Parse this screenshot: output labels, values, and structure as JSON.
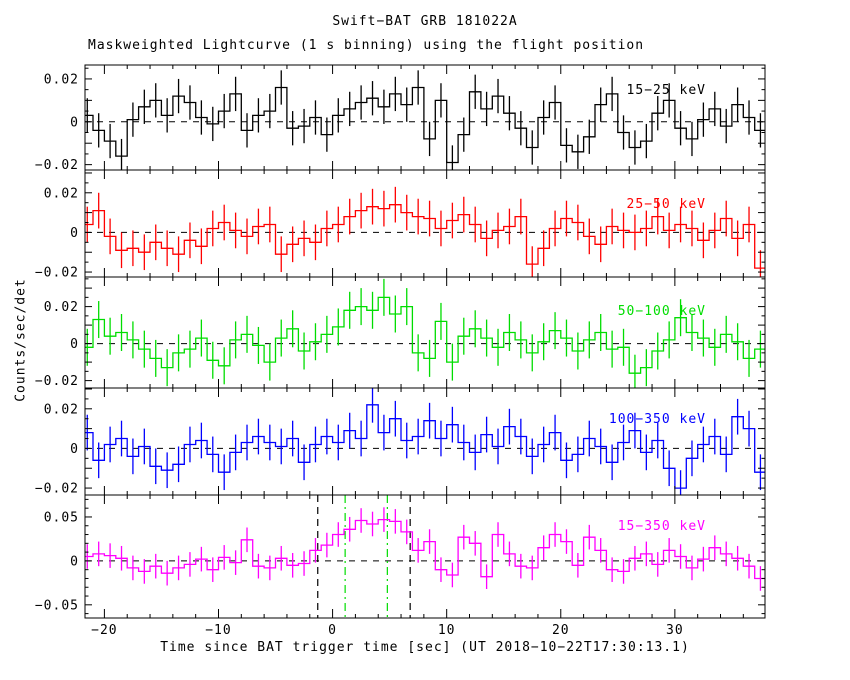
{
  "title": "Swift−BAT GRB 181022A",
  "subtitle": "Maskweighted Lightcurve (1 s binning) using the flight position",
  "xlabel": "Time since BAT trigger time [sec] (UT 2018−10−22T17:30:13.1)",
  "ylabel": "Counts/sec/det",
  "chart_data": {
    "type": "line",
    "style": "step-histogram with symmetric error bars, 1 s bins",
    "x_start": -22,
    "bin_width": 1,
    "xlim": [
      -21.7,
      37.9
    ],
    "x_ticks": [
      {
        "v": -20,
        "label": "−20"
      },
      {
        "v": -10,
        "label": "−10"
      },
      {
        "v": 0,
        "label": "0"
      },
      {
        "v": 10,
        "label": "10"
      },
      {
        "v": 20,
        "label": "20"
      },
      {
        "v": 30,
        "label": "30"
      }
    ],
    "x_minor_step": 2,
    "value_scale": 0.001,
    "grid": "off",
    "zero_line_style": "black dashed",
    "panels": [
      {
        "label": "15−25 keV",
        "color": "#000000",
        "ylim": [
          -0.0225,
          0.0265
        ],
        "y_ticks": [
          {
            "v": 0.02,
            "label": "0.02"
          },
          {
            "v": 0,
            "label": "0"
          },
          {
            "v": -0.02,
            "label": "−0.02"
          }
        ],
        "y_minor_step": 0.005,
        "y_major_step": 0.01,
        "err": 8,
        "values": [
          3,
          -4,
          -9,
          -16,
          1,
          7,
          10,
          3,
          12,
          9,
          2,
          -1,
          5,
          13,
          -4,
          3,
          5,
          16,
          -3,
          -2,
          2,
          -6,
          3,
          6,
          9,
          11,
          7,
          13,
          8,
          16,
          -8,
          10,
          -19,
          -6,
          14,
          6,
          12,
          4,
          -3,
          -12,
          2,
          9,
          -11,
          -14,
          -7,
          8,
          13,
          -5,
          -12,
          -9,
          4,
          10,
          -3,
          -8,
          1,
          6,
          -2,
          8,
          2,
          -4
        ]
      },
      {
        "label": "25−50 keV",
        "color": "#ff0000",
        "ylim": [
          -0.0225,
          0.0315
        ],
        "y_ticks": [
          {
            "v": 0.02,
            "label": "0.02"
          },
          {
            "v": 0,
            "label": "0"
          },
          {
            "v": -0.02,
            "label": "−0.02"
          }
        ],
        "y_minor_step": 0.005,
        "y_major_step": 0.01,
        "err": 9,
        "values": [
          4,
          11,
          -2,
          -9,
          -8,
          -10,
          -5,
          -8,
          -11,
          -4,
          -7,
          2,
          5,
          1,
          -2,
          3,
          4,
          -11,
          -6,
          -3,
          -5,
          2,
          4,
          8,
          11,
          13,
          12,
          14,
          10,
          8,
          7,
          2,
          6,
          9,
          4,
          -3,
          1,
          3,
          8,
          -16,
          -8,
          2,
          7,
          5,
          -2,
          -6,
          3,
          1,
          0,
          2,
          8,
          1,
          4,
          2,
          -4,
          1,
          7,
          -3,
          4,
          -18
        ]
      },
      {
        "label": "50−100 keV",
        "color": "#00dd00",
        "ylim": [
          -0.024,
          0.036
        ],
        "y_ticks": [
          {
            "v": 0.02,
            "label": "0.02"
          },
          {
            "v": 0,
            "label": "0"
          },
          {
            "v": -0.02,
            "label": "−0.02"
          }
        ],
        "y_minor_step": 0.005,
        "y_major_step": 0.01,
        "err": 10,
        "values": [
          -2,
          13,
          4,
          6,
          2,
          -3,
          -8,
          -13,
          -5,
          -3,
          3,
          -9,
          -12,
          2,
          5,
          -1,
          -10,
          3,
          8,
          -4,
          1,
          5,
          9,
          18,
          20,
          18,
          25,
          16,
          20,
          -5,
          -8,
          12,
          -10,
          4,
          8,
          3,
          -2,
          6,
          2,
          -5,
          1,
          7,
          3,
          -4,
          2,
          6,
          -3,
          -2,
          -16,
          -13,
          -4,
          2,
          14,
          6,
          3,
          -2,
          5,
          1,
          -8,
          -3
        ]
      },
      {
        "label": "100−350 keV",
        "color": "#0000ff",
        "ylim": [
          -0.0235,
          0.0305
        ],
        "y_ticks": [
          {
            "v": 0.02,
            "label": "0.02"
          },
          {
            "v": 0,
            "label": "0"
          },
          {
            "v": -0.02,
            "label": "−0.02"
          }
        ],
        "y_minor_step": 0.005,
        "y_major_step": 0.01,
        "err": 9,
        "values": [
          8,
          -6,
          2,
          5,
          -4,
          1,
          -9,
          -11,
          -8,
          2,
          4,
          -3,
          -12,
          -2,
          3,
          6,
          3,
          1,
          5,
          -7,
          2,
          6,
          3,
          9,
          5,
          22,
          8,
          15,
          4,
          6,
          14,
          5,
          12,
          3,
          -2,
          7,
          1,
          11,
          6,
          -4,
          2,
          8,
          -6,
          -3,
          5,
          1,
          -7,
          3,
          9,
          -2,
          4,
          -10,
          -20,
          -5,
          2,
          6,
          -3,
          16,
          10,
          -12
        ]
      },
      {
        "label": "15−350 keV",
        "color": "#ff00ff",
        "ylim": [
          -0.065,
          0.075
        ],
        "y_ticks": [
          {
            "v": 0.05,
            "label": "0.05"
          },
          {
            "v": 0,
            "label": "0"
          },
          {
            "v": -0.05,
            "label": "−0.05"
          }
        ],
        "y_minor_step": 0.01,
        "y_major_step": 0.05,
        "err": 14,
        "values": [
          5,
          8,
          6,
          3,
          -8,
          -12,
          -6,
          -14,
          -8,
          -4,
          2,
          -10,
          4,
          -2,
          24,
          -6,
          -8,
          3,
          -5,
          -3,
          12,
          18,
          30,
          36,
          46,
          42,
          47,
          45,
          33,
          12,
          22,
          -10,
          -16,
          27,
          20,
          -18,
          30,
          8,
          -6,
          -8,
          15,
          30,
          22,
          -5,
          27,
          12,
          -10,
          -12,
          3,
          8,
          -4,
          12,
          5,
          -8,
          2,
          15,
          8,
          3,
          -6,
          -20
        ],
        "markers": {
          "black_dashed_x": [
            -1.3,
            6.8
          ],
          "green_dashdot_x": [
            1.1,
            4.8
          ],
          "marker_green": "#00dd00",
          "marker_black": "#000000"
        }
      }
    ]
  }
}
